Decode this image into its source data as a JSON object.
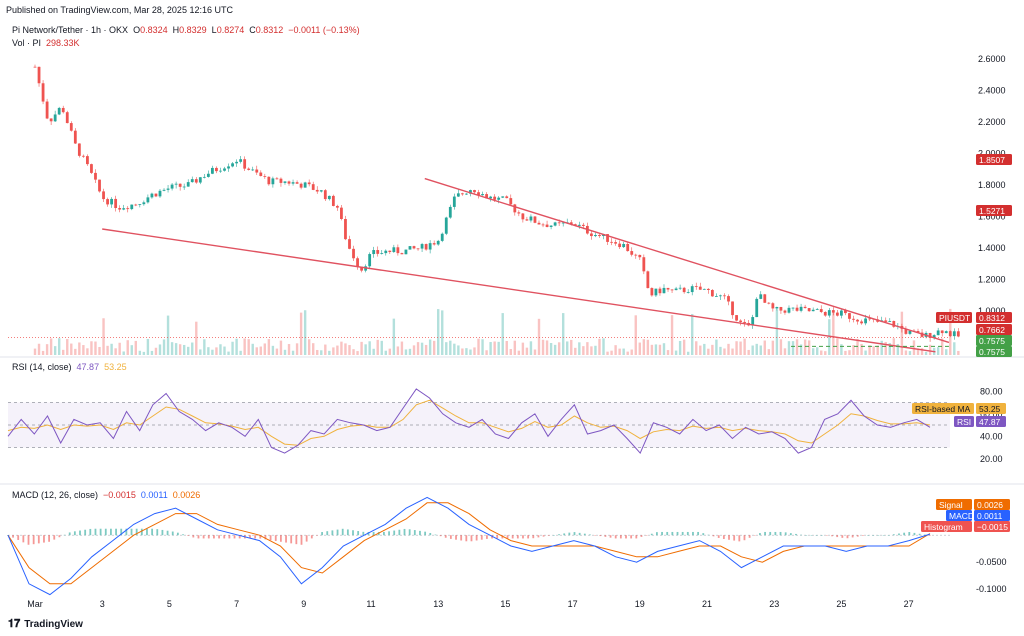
{
  "published": "Published on TradingView.com, Mar 28, 2025 12:16 UTC",
  "header": {
    "symbol": "Pi Network/Tether · 1h · OKX",
    "o_label": "O",
    "o_value": "0.8324",
    "h_label": "H",
    "h_value": "0.8329",
    "l_label": "L",
    "l_value": "0.8274",
    "c_label": "C",
    "c_value": "0.8312",
    "change": "−0.0011 (−0.13%)",
    "vol_label": "Vol · PI",
    "vol_value": "298.33K"
  },
  "rsi_label": {
    "name": "RSI (14, close)",
    "v1": "47.87",
    "v2": "53.25"
  },
  "macd_label": {
    "name": "MACD (12, 26, close)",
    "v1": "−0.0015",
    "v2": "0.0011",
    "v3": "0.0026"
  },
  "footer": {
    "brand": "TradingView"
  },
  "colors": {
    "bull": "#26a69a",
    "bear": "#ef5350",
    "trend": "#e05260",
    "rsi": "#7e57c2",
    "rsi_ma": "#f0b23d",
    "macd": "#2962ff",
    "signal": "#ef6c00"
  },
  "chart_data": [
    {
      "type": "candlestick",
      "title": "Pi Network/Tether · 1h · OKX",
      "x_ticks": [
        "Mar",
        "3",
        "5",
        "7",
        "9",
        "11",
        "13",
        "15",
        "17",
        "19",
        "21",
        "23",
        "25",
        "27"
      ],
      "y_ticks": [
        "2.6000",
        "2.4000",
        "2.2000",
        "2.0000",
        "1.8000",
        "1.6000",
        "1.4000",
        "1.2000",
        "1.0000"
      ],
      "ylim": [
        0.72,
        2.72
      ],
      "price_path": [
        [
          0,
          2.55
        ],
        [
          0.4,
          2.2
        ],
        [
          0.8,
          2.3
        ],
        [
          1.2,
          2.05
        ],
        [
          1.6,
          1.9
        ],
        [
          2.0,
          1.72
        ],
        [
          2.5,
          1.66
        ],
        [
          3.0,
          1.68
        ],
        [
          3.5,
          1.74
        ],
        [
          4.0,
          1.78
        ],
        [
          4.6,
          1.8
        ],
        [
          5.0,
          1.86
        ],
        [
          5.6,
          1.92
        ],
        [
          6.0,
          1.96
        ],
        [
          6.5,
          1.88
        ],
        [
          7.0,
          1.82
        ],
        [
          7.5,
          1.82
        ],
        [
          8.0,
          1.8
        ],
        [
          8.5,
          1.76
        ],
        [
          9.0,
          1.66
        ],
        [
          9.3,
          1.42
        ],
        [
          9.7,
          1.26
        ],
        [
          10.0,
          1.36
        ],
        [
          10.5,
          1.38
        ],
        [
          11.0,
          1.38
        ],
        [
          11.5,
          1.4
        ],
        [
          12.0,
          1.45
        ],
        [
          12.5,
          1.72
        ],
        [
          13.0,
          1.78
        ],
        [
          13.5,
          1.72
        ],
        [
          14.0,
          1.7
        ],
        [
          14.5,
          1.6
        ],
        [
          15.0,
          1.56
        ],
        [
          15.5,
          1.54
        ],
        [
          16.0,
          1.56
        ],
        [
          16.5,
          1.5
        ],
        [
          17.0,
          1.46
        ],
        [
          17.5,
          1.42
        ],
        [
          18.0,
          1.32
        ],
        [
          18.3,
          1.1
        ],
        [
          18.7,
          1.14
        ],
        [
          19.0,
          1.12
        ],
        [
          19.5,
          1.14
        ],
        [
          20.0,
          1.13
        ],
        [
          20.5,
          1.08
        ],
        [
          21.0,
          0.92
        ],
        [
          21.3,
          0.89
        ],
        [
          21.5,
          1.12
        ],
        [
          21.7,
          1.05
        ],
        [
          22.0,
          1.0
        ],
        [
          22.5,
          1.01
        ],
        [
          23.0,
          1.0
        ],
        [
          23.5,
          0.99
        ],
        [
          24.0,
          0.98
        ],
        [
          24.5,
          0.95
        ],
        [
          25.0,
          0.93
        ],
        [
          25.5,
          0.92
        ],
        [
          26.0,
          0.86
        ],
        [
          26.5,
          0.84
        ],
        [
          27.0,
          0.88
        ],
        [
          27.3,
          0.85
        ],
        [
          27.6,
          0.831
        ]
      ],
      "price_tags": [
        {
          "label": "1.8507",
          "value": 1.8507,
          "color": "#d32f2f"
        },
        {
          "label": "1.5271",
          "value": 1.5271,
          "color": "#d32f2f"
        },
        {
          "label": "PIUSDT",
          "value": 0.8312,
          "color": "#d32f2f"
        },
        {
          "label": "0.8312",
          "value": 0.8312,
          "color": "#d32f2f"
        },
        {
          "label": "0.7662",
          "value": 0.7662,
          "color": "#d32f2f"
        },
        {
          "label": "0.7575",
          "value": 0.7575,
          "color": "#43a047"
        },
        {
          "label": "0.7575",
          "value": 0.7575,
          "color": "#43a047"
        }
      ],
      "trendlines": [
        {
          "from": [
            2.0,
            1.52
          ],
          "to": [
            26.8,
            0.74
          ]
        },
        {
          "from": [
            11.6,
            1.84
          ],
          "to": [
            27.2,
            0.8
          ]
        }
      ],
      "dashed_level": 0.775,
      "volume_tag": "298.33K"
    },
    {
      "type": "line",
      "title": "RSI (14, close)",
      "y_ticks": [
        "80.00",
        "60.00",
        "40.00",
        "20.00"
      ],
      "ylim": [
        10,
        90
      ],
      "band": [
        30,
        70
      ],
      "mid": 50,
      "tags": [
        {
          "label": "RSI-based MA",
          "value": "53.25",
          "color": "#f0b23d"
        },
        {
          "label": "RSI",
          "value": "47.87",
          "color": "#7e57c2"
        }
      ],
      "series": [
        {
          "name": "RSI",
          "values": [
            40,
            55,
            42,
            58,
            34,
            55,
            50,
            52,
            38,
            62,
            45,
            68,
            78,
            62,
            55,
            45,
            52,
            48,
            40,
            55,
            30,
            25,
            32,
            45,
            42,
            55,
            52,
            50,
            45,
            48,
            65,
            82,
            74,
            60,
            52,
            48,
            55,
            42,
            38,
            52,
            60,
            40,
            55,
            68,
            42,
            45,
            50,
            38,
            25,
            52,
            48,
            42,
            55,
            45,
            50,
            38,
            48,
            42,
            44,
            38,
            25,
            30,
            55,
            60,
            72,
            58,
            50,
            48,
            52,
            55,
            48
          ]
        },
        {
          "name": "RSI-based MA",
          "values": [
            45,
            48,
            47,
            50,
            46,
            50,
            49,
            50,
            46,
            52,
            50,
            58,
            66,
            64,
            58,
            52,
            51,
            49,
            46,
            48,
            40,
            33,
            32,
            38,
            40,
            46,
            49,
            50,
            48,
            48,
            55,
            68,
            72,
            65,
            58,
            52,
            52,
            48,
            44,
            47,
            53,
            48,
            50,
            58,
            52,
            48,
            49,
            45,
            38,
            44,
            46,
            45,
            49,
            47,
            48,
            45,
            47,
            45,
            44,
            42,
            36,
            34,
            42,
            50,
            60,
            58,
            54,
            51,
            51,
            52,
            50
          ]
        }
      ]
    },
    {
      "type": "line",
      "title": "MACD (12, 26, close)",
      "y_ticks": [
        "-0.0500",
        "-0.1000"
      ],
      "ylim": [
        -0.12,
        0.08
      ],
      "tags": [
        {
          "label": "Signal",
          "value": "0.0026",
          "color": "#ef6c00"
        },
        {
          "label": "MACD",
          "value": "0.0011",
          "color": "#2962ff"
        },
        {
          "label": "Histogram",
          "value": "−0.0015",
          "color": "#ef5350"
        }
      ],
      "series": [
        {
          "name": "MACD",
          "values": [
            0.0,
            -0.09,
            -0.11,
            -0.08,
            -0.04,
            -0.01,
            0.02,
            0.04,
            0.05,
            0.03,
            0.01,
            0.0,
            -0.01,
            -0.04,
            -0.09,
            -0.06,
            -0.02,
            0.0,
            0.02,
            0.05,
            0.07,
            0.05,
            0.02,
            0.0,
            -0.02,
            -0.03,
            -0.02,
            -0.01,
            -0.02,
            -0.04,
            -0.05,
            -0.03,
            -0.02,
            -0.01,
            -0.03,
            -0.06,
            -0.04,
            -0.02,
            -0.02,
            -0.02,
            -0.03,
            -0.02,
            -0.02,
            -0.01,
            0.002
          ]
        },
        {
          "name": "Signal",
          "values": [
            0.0,
            -0.06,
            -0.09,
            -0.09,
            -0.06,
            -0.03,
            0.0,
            0.02,
            0.04,
            0.04,
            0.02,
            0.01,
            0.0,
            -0.02,
            -0.06,
            -0.07,
            -0.04,
            -0.01,
            0.01,
            0.03,
            0.06,
            0.06,
            0.04,
            0.01,
            -0.01,
            -0.02,
            -0.02,
            -0.02,
            -0.02,
            -0.03,
            -0.04,
            -0.04,
            -0.03,
            -0.02,
            -0.02,
            -0.04,
            -0.05,
            -0.03,
            -0.02,
            -0.02,
            -0.02,
            -0.02,
            -0.02,
            -0.02,
            0.003
          ]
        }
      ]
    }
  ]
}
